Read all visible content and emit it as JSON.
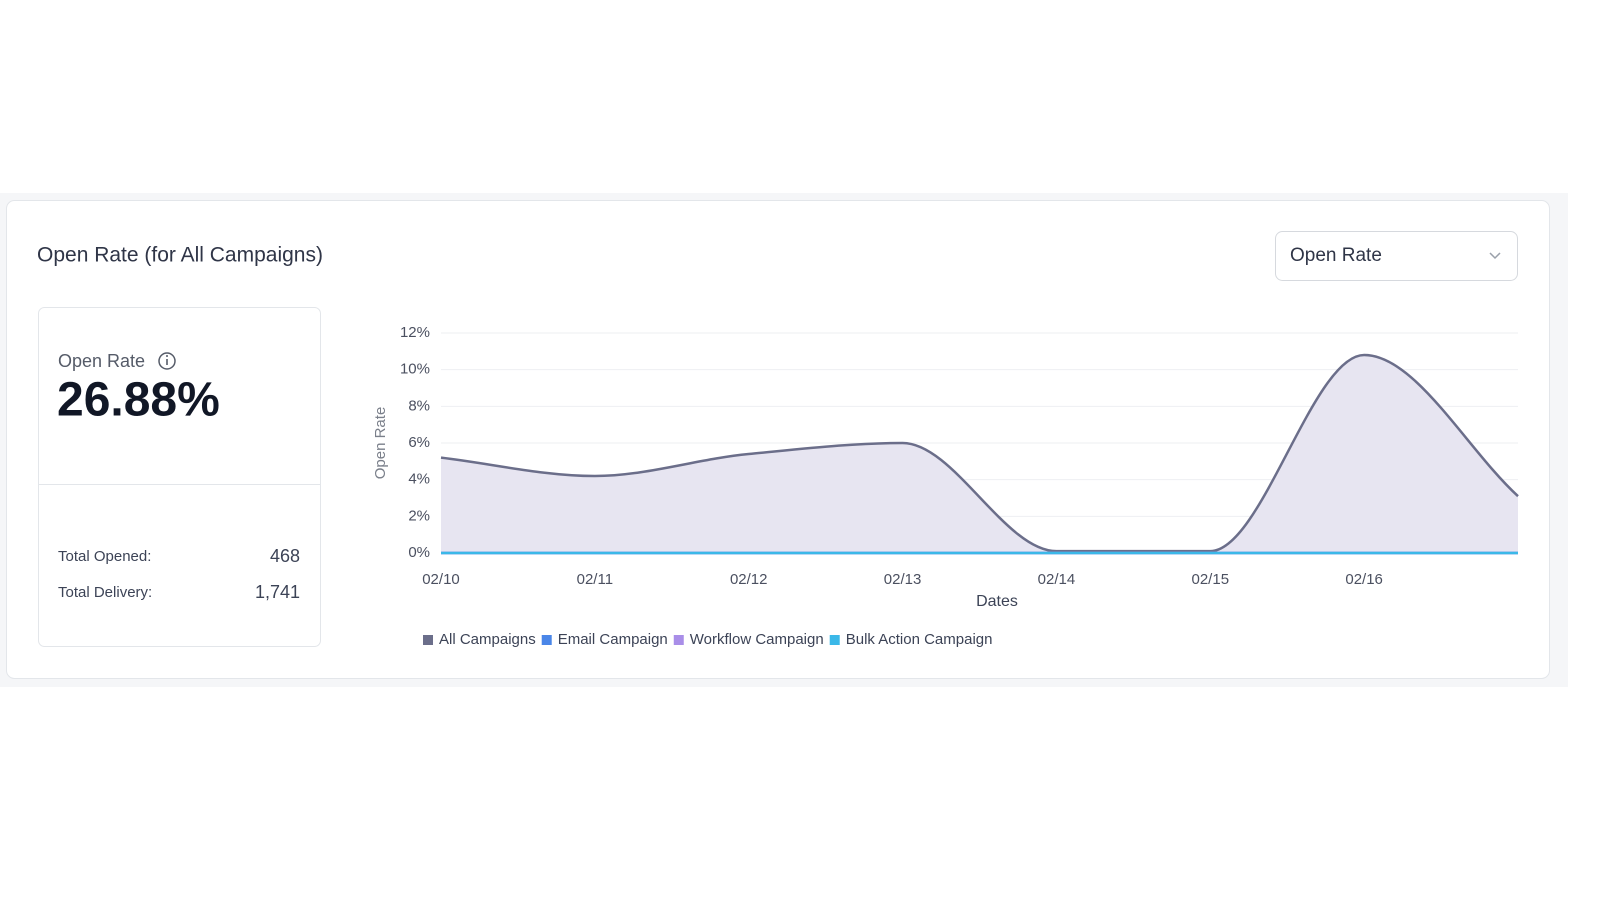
{
  "header": {
    "title": "Open Rate (for All Campaigns)"
  },
  "dropdown": {
    "selected": "Open Rate"
  },
  "summary": {
    "label": "Open Rate",
    "value": "26.88%",
    "stats": [
      {
        "label": "Total Opened:",
        "value": "468"
      },
      {
        "label": "Total Delivery:",
        "value": "1,741"
      }
    ]
  },
  "chart_data": {
    "type": "area",
    "x_label": "Dates",
    "y_label": "Open Rate",
    "categories": [
      "02/10",
      "02/11",
      "02/12",
      "02/13",
      "02/14",
      "02/15",
      "02/16",
      null
    ],
    "series": [
      {
        "name": "All Campaigns",
        "color": "#6b6e8a",
        "fill": "#e7e5f1",
        "values": [
          5.2,
          4.2,
          5.4,
          6.0,
          0.1,
          0.1,
          10.8,
          3.1
        ]
      },
      {
        "name": "Email Campaign",
        "color": "#4a86e8",
        "values": [
          0,
          0,
          0,
          0,
          0,
          0,
          0,
          0
        ]
      },
      {
        "name": "Workflow Campaign",
        "color": "#a98ee8",
        "values": [
          0,
          0,
          0,
          0,
          0,
          0,
          0,
          0
        ]
      },
      {
        "name": "Bulk Action Campaign",
        "color": "#3bb8e8",
        "values": [
          0,
          0,
          0,
          0,
          0,
          0,
          0,
          0
        ]
      }
    ],
    "ylim": [
      0,
      12
    ],
    "yticks": [
      {
        "value": 0,
        "label": "0%"
      },
      {
        "value": 2,
        "label": "2%"
      },
      {
        "value": 4,
        "label": "4%"
      },
      {
        "value": 6,
        "label": "6%"
      },
      {
        "value": 8,
        "label": "8%"
      },
      {
        "value": 10,
        "label": "10%"
      },
      {
        "value": 12,
        "label": "12%"
      }
    ],
    "grid": true
  }
}
